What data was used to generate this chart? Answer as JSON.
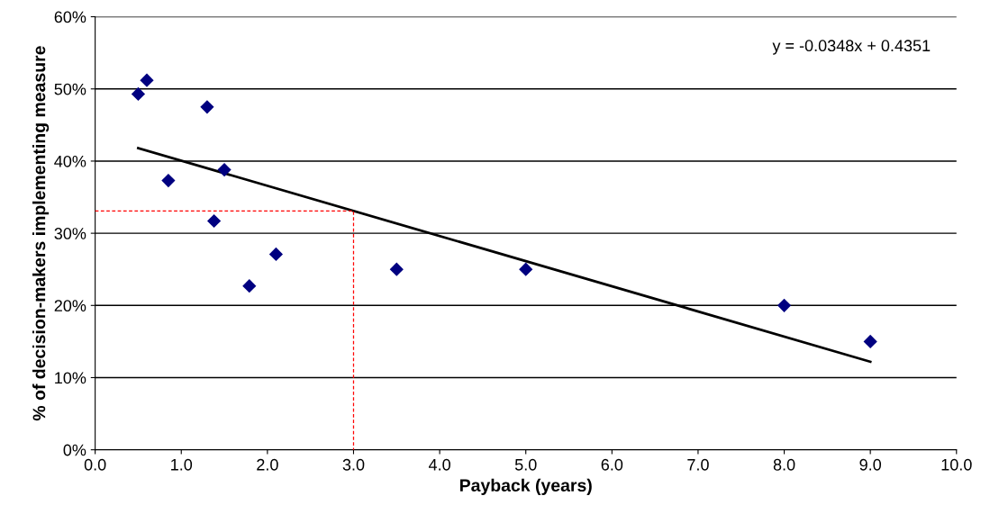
{
  "chart_data": {
    "type": "scatter",
    "xlabel": "Payback (years)",
    "ylabel": "% of decision-makers implementing measure",
    "xlim": [
      0,
      10
    ],
    "xticks": [
      {
        "value": 0,
        "label": "0.0"
      },
      {
        "value": 1,
        "label": "1.0"
      },
      {
        "value": 2,
        "label": "2.0"
      },
      {
        "value": 3,
        "label": "3.0"
      },
      {
        "value": 4,
        "label": "4.0"
      },
      {
        "value": 5,
        "label": "5.0"
      },
      {
        "value": 6,
        "label": "6.0"
      },
      {
        "value": 7,
        "label": "7.0"
      },
      {
        "value": 8,
        "label": "8.0"
      },
      {
        "value": 9,
        "label": "9.0"
      },
      {
        "value": 10,
        "label": "10.0"
      }
    ],
    "ylim": [
      0,
      0.6
    ],
    "yticks": [
      {
        "value": 0,
        "label": "0%"
      },
      {
        "value": 0.1,
        "label": "10%"
      },
      {
        "value": 0.2,
        "label": "20%"
      },
      {
        "value": 0.3,
        "label": "30%"
      },
      {
        "value": 0.4,
        "label": "40%"
      },
      {
        "value": 0.5,
        "label": "50%"
      },
      {
        "value": 0.6,
        "label": "60%"
      }
    ],
    "grid": "y",
    "legend": false,
    "series": [
      {
        "color": "#000080",
        "marker": "diamond",
        "x": [
          0.5,
          0.6,
          0.85,
          1.3,
          1.5,
          1.38,
          1.79,
          2.1,
          3.5,
          5.0,
          8.0,
          9.0
        ],
        "values": [
          0.493,
          0.512,
          0.373,
          0.475,
          0.388,
          0.317,
          0.227,
          0.271,
          0.25,
          0.25,
          0.2,
          0.15
        ]
      },
      {
        "type": "line",
        "color": "#000000",
        "line_style": "solid",
        "marker": "none",
        "x": [
          0.5,
          9.0
        ],
        "values": [
          0.418,
          0.122
        ]
      },
      {
        "type": "line",
        "color": "#ff0000",
        "line_style": "dashed",
        "marker": "none",
        "x": [
          0,
          3.0,
          3.0
        ],
        "values": [
          0.331,
          0.331,
          0
        ]
      }
    ],
    "annotations": [
      "y = -0.0348x + 0.4351"
    ]
  }
}
